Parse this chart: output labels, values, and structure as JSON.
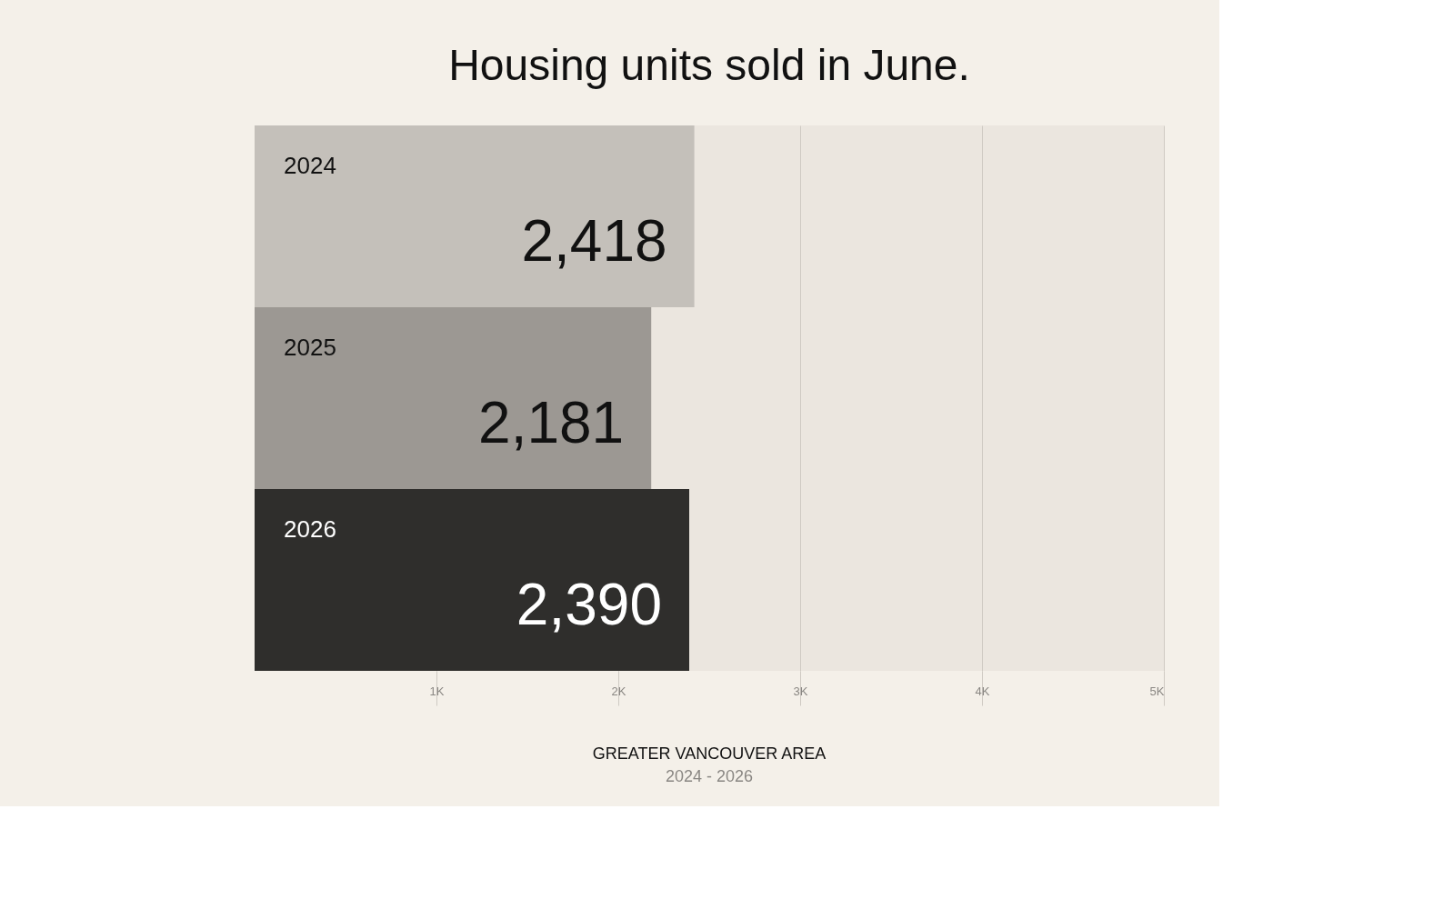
{
  "chart_data": {
    "type": "bar",
    "orientation": "horizontal",
    "title": "Housing units sold in June.",
    "categories": [
      "2024",
      "2025",
      "2026"
    ],
    "values": [
      2418,
      2181,
      2390
    ],
    "colors": [
      "#c4c0ba",
      "#9c9893",
      "#2f2e2c"
    ],
    "value_labels": [
      "2,418",
      "2,181",
      "2,390"
    ],
    "xlim": [
      0,
      5000
    ],
    "xticks": [
      {
        "value": 1000,
        "label": "1K"
      },
      {
        "value": 2000,
        "label": "2K"
      },
      {
        "value": 3000,
        "label": "3K"
      },
      {
        "value": 4000,
        "label": "4K"
      },
      {
        "value": 5000,
        "label": "5K"
      }
    ],
    "grid": "x",
    "tick_labels": "x",
    "annotations": [
      "GREATER VANCOUVER AREA",
      "2024 - 2026"
    ]
  }
}
